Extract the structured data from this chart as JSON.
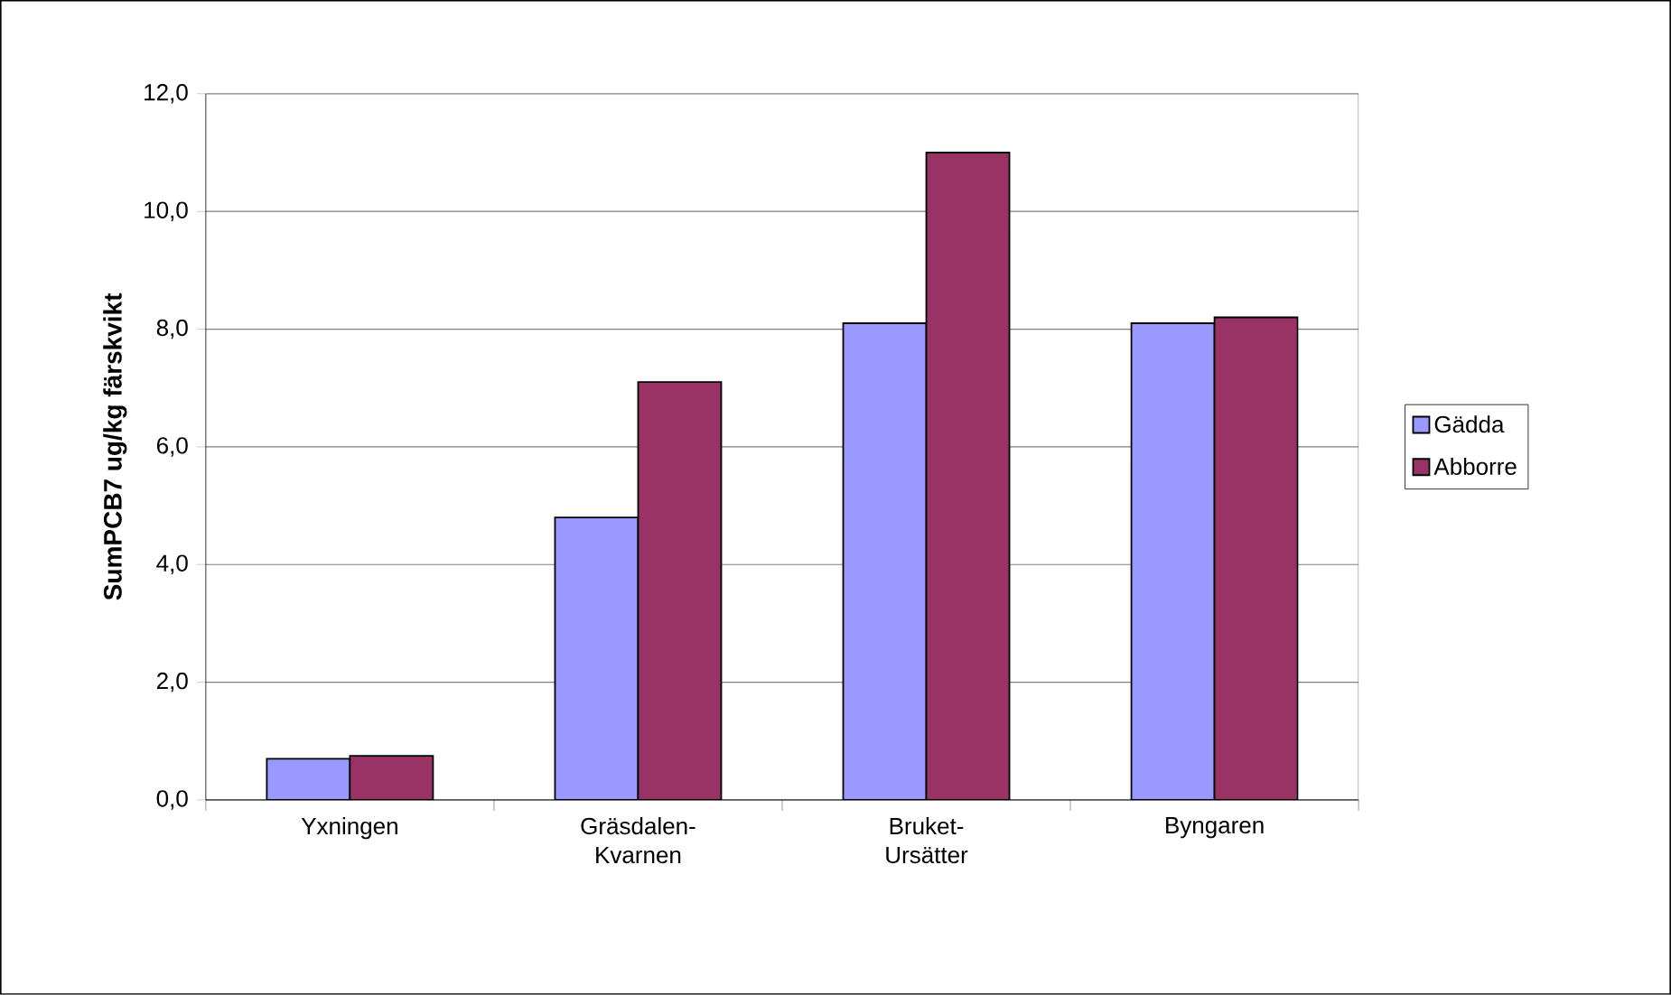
{
  "chart_data": {
    "type": "bar",
    "ylabel": "SumPCB7 ug/kg färskvikt",
    "categories": [
      "Yxningen",
      "Gräsdalen-Kvarnen",
      "Bruket-Ursätter",
      "Byngaren"
    ],
    "series": [
      {
        "name": "Gädda",
        "color": "#9999ff",
        "values": [
          0.7,
          4.8,
          8.1,
          8.1
        ]
      },
      {
        "name": "Abborre",
        "color": "#993366",
        "values": [
          0.75,
          7.1,
          11.0,
          8.2
        ]
      }
    ],
    "ylim": [
      0,
      12
    ],
    "yticks": [
      {
        "value": 0,
        "label": "0,0"
      },
      {
        "value": 2,
        "label": "2,0"
      },
      {
        "value": 4,
        "label": "4,0"
      },
      {
        "value": 6,
        "label": "6,0"
      },
      {
        "value": 8,
        "label": "8,0"
      },
      {
        "value": 10,
        "label": "10,0"
      },
      {
        "value": 12,
        "label": "12,0"
      }
    ],
    "grid": "y",
    "legend": "right"
  }
}
